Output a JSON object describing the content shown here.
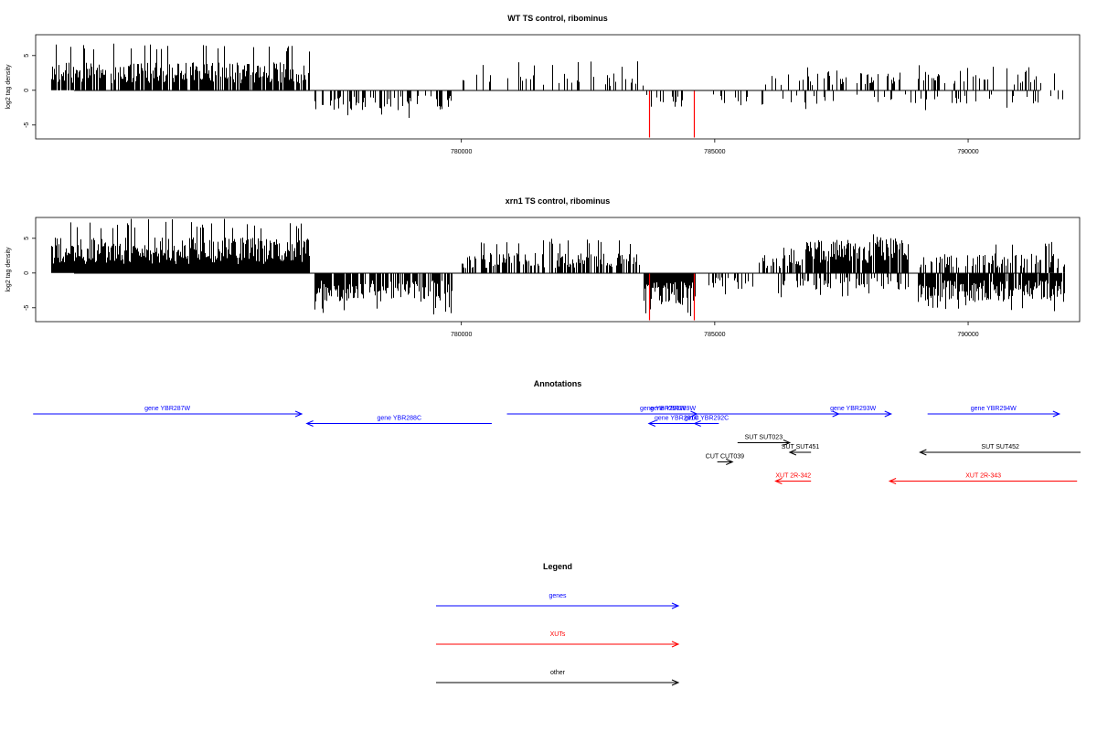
{
  "colors": {
    "gene": "#0000ff",
    "xut": "#ff0000",
    "other": "#000000",
    "highlight": "#ff0000",
    "bar": "#000000"
  },
  "chart_data": [
    {
      "type": "bar",
      "title": "WT TS control, ribominus",
      "ylabel": "log2 tag density",
      "xlim": [
        771600,
        792200
      ],
      "ylim": [
        -7,
        8
      ],
      "xticks": [
        780000,
        785000,
        790000
      ],
      "yticks": [
        5,
        0,
        -5
      ],
      "grid": false,
      "highlight_x": [
        783700,
        784580
      ],
      "highlight_y": -6.8,
      "regions": [
        {
          "start": 771900,
          "end": 777000,
          "sign": 1,
          "density": 0.8,
          "mean": 2.5,
          "max": 6.8
        },
        {
          "start": 777100,
          "end": 779800,
          "sign": -1,
          "density": 0.35,
          "mean": 1.8,
          "max": 4.2
        },
        {
          "start": 780000,
          "end": 783600,
          "sign": 1,
          "density": 0.18,
          "mean": 1.6,
          "max": 4.2
        },
        {
          "start": 783600,
          "end": 784400,
          "sign": -1,
          "density": 0.3,
          "mean": 1.5,
          "max": 3.0
        },
        {
          "start": 784900,
          "end": 786000,
          "sign": -1,
          "density": 0.15,
          "mean": 1.4,
          "max": 3.2
        },
        {
          "start": 785800,
          "end": 787000,
          "sign": 1,
          "density": 0.15,
          "mean": 1.4,
          "max": 2.8
        },
        {
          "start": 786200,
          "end": 789000,
          "sign": -1,
          "density": 0.1,
          "mean": 1.3,
          "max": 2.8
        },
        {
          "start": 786800,
          "end": 788800,
          "sign": 1,
          "density": 0.3,
          "mean": 1.8,
          "max": 3.8
        },
        {
          "start": 789000,
          "end": 791900,
          "sign": 1,
          "density": 0.22,
          "mean": 1.8,
          "max": 3.8
        },
        {
          "start": 789000,
          "end": 791900,
          "sign": -1,
          "density": 0.12,
          "mean": 1.2,
          "max": 3.0
        }
      ]
    },
    {
      "type": "bar",
      "title": "xrn1 TS control, ribominus",
      "ylabel": "log2 tag density",
      "xlim": [
        771600,
        792200
      ],
      "ylim": [
        -7,
        8
      ],
      "xticks": [
        780000,
        785000,
        790000
      ],
      "yticks": [
        5,
        0,
        -5
      ],
      "grid": false,
      "highlight_x": [
        783700,
        784580
      ],
      "highlight_y": -6.8,
      "regions": [
        {
          "start": 771900,
          "end": 777000,
          "sign": 1,
          "density": 1.0,
          "mean": 3.2,
          "max": 7.8
        },
        {
          "start": 777100,
          "end": 779800,
          "sign": -1,
          "density": 0.8,
          "mean": 2.6,
          "max": 6.0
        },
        {
          "start": 780000,
          "end": 783500,
          "sign": 1,
          "density": 0.6,
          "mean": 1.8,
          "max": 5.0
        },
        {
          "start": 783600,
          "end": 784600,
          "sign": -1,
          "density": 1.0,
          "mean": 3.0,
          "max": 6.5
        },
        {
          "start": 784500,
          "end": 785800,
          "sign": -1,
          "density": 0.35,
          "mean": 1.6,
          "max": 3.8
        },
        {
          "start": 785800,
          "end": 786800,
          "sign": 1,
          "density": 0.5,
          "mean": 1.8,
          "max": 4.0
        },
        {
          "start": 786200,
          "end": 788800,
          "sign": -1,
          "density": 0.4,
          "mean": 1.5,
          "max": 3.5
        },
        {
          "start": 786800,
          "end": 788800,
          "sign": 1,
          "density": 0.9,
          "mean": 3.0,
          "max": 5.6
        },
        {
          "start": 789000,
          "end": 791900,
          "sign": 1,
          "density": 0.45,
          "mean": 1.8,
          "max": 4.6
        },
        {
          "start": 789000,
          "end": 791900,
          "sign": -1,
          "density": 0.9,
          "mean": 2.6,
          "max": 5.5
        }
      ]
    }
  ],
  "annotations": {
    "title": "Annotations",
    "items": [
      {
        "label": "gene YBR287W",
        "type": "gene",
        "start": 771550,
        "end": 776850,
        "strand": "+",
        "row": 0
      },
      {
        "label": "gene YBR288C",
        "type": "gene",
        "start": 776950,
        "end": 780600,
        "strand": "-",
        "row": 1
      },
      {
        "label": "gene YBR289W",
        "type": "gene",
        "start": 780900,
        "end": 787450,
        "strand": "+",
        "row": 0
      },
      {
        "label": "gene YBR290W",
        "type": "gene",
        "start": 783300,
        "end": 784650,
        "strand": "+",
        "row": 0
      },
      {
        "label": "gene YBR291C",
        "type": "gene",
        "start": 783700,
        "end": 784800,
        "strand": "-",
        "row": 1
      },
      {
        "label": "gene YBR292C",
        "type": "gene",
        "start": 784600,
        "end": 785080,
        "strand": "-",
        "row": 1
      },
      {
        "label": "gene YBR293W",
        "type": "gene",
        "start": 786980,
        "end": 788480,
        "strand": "+",
        "row": 0
      },
      {
        "label": "gene YBR294W",
        "type": "gene",
        "start": 789200,
        "end": 791800,
        "strand": "+",
        "row": 0
      },
      {
        "label": "SUT SUT023",
        "type": "other",
        "start": 785450,
        "end": 786480,
        "strand": "+",
        "row": 3
      },
      {
        "label": "SUT SUT451",
        "type": "other",
        "start": 786480,
        "end": 786900,
        "strand": "-",
        "row": 4
      },
      {
        "label": "SUT SUT452",
        "type": "other",
        "start": 789050,
        "end": 792250,
        "strand": "-",
        "row": 4
      },
      {
        "label": "CUT CUT039",
        "type": "other",
        "start": 785050,
        "end": 785350,
        "strand": "+",
        "row": 5
      },
      {
        "label": "XUT 2R-342",
        "type": "xut",
        "start": 786200,
        "end": 786900,
        "strand": "-",
        "row": 7
      },
      {
        "label": "XUT 2R-343",
        "type": "xut",
        "start": 788450,
        "end": 792150,
        "strand": "-",
        "row": 7
      }
    ]
  },
  "legend": {
    "title": "Legend",
    "items": [
      {
        "label": "genes",
        "type": "gene"
      },
      {
        "label": "XUTs",
        "type": "xut"
      },
      {
        "label": "other",
        "type": "other"
      }
    ]
  }
}
